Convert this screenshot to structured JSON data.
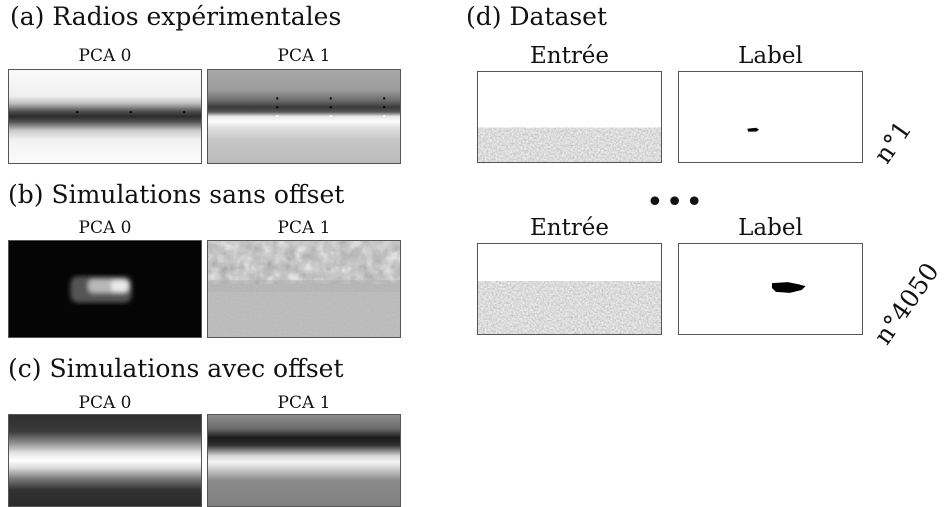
{
  "panels": {
    "a": {
      "title": "(a) Radios expérimentales",
      "left": "PCA 0",
      "right": "PCA 1"
    },
    "b": {
      "title": "(b) Simulations sans offset",
      "left": "PCA 0",
      "right": "PCA 1"
    },
    "c": {
      "title": "(c) Simulations avec offset",
      "left": "PCA 0",
      "right": "PCA 1"
    },
    "d": {
      "title": "(d) Dataset",
      "ellipsis": "•••",
      "rows": [
        {
          "input_label": "Entrée",
          "label_label": "Label",
          "index": "n°1"
        },
        {
          "input_label": "Entrée",
          "label_label": "Label",
          "index": "n°4050"
        }
      ]
    }
  }
}
